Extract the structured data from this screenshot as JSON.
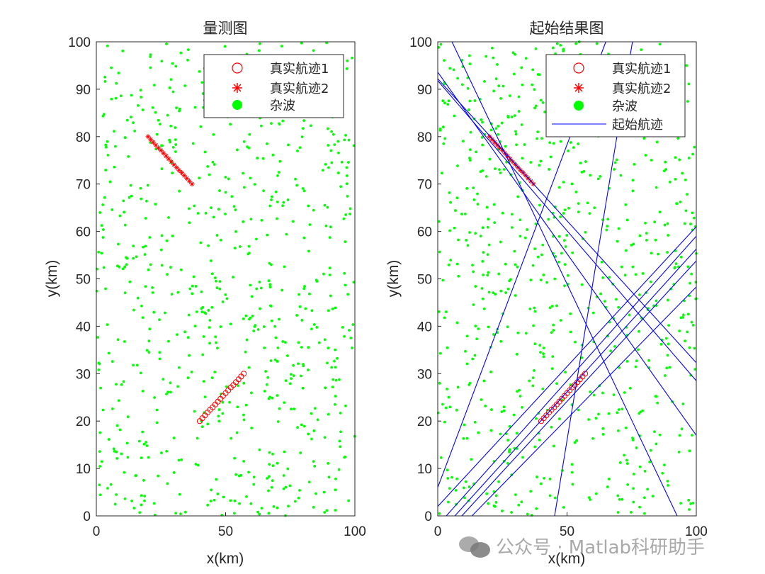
{
  "chart_data": [
    {
      "type": "scatter",
      "title": "量测图",
      "xlabel": "x(km)",
      "ylabel": "y(km)",
      "xlim": [
        0,
        100
      ],
      "ylim": [
        0,
        100
      ],
      "xticks": [
        0,
        50,
        100
      ],
      "yticks": [
        0,
        10,
        20,
        30,
        40,
        50,
        60,
        70,
        80,
        90,
        100
      ],
      "grid": false,
      "legend_position": "northeast",
      "legend": [
        "真实航迹1",
        "真实航迹2",
        "杂波"
      ],
      "series": [
        {
          "name": "真实航迹1",
          "marker": "circle",
          "color": "#ff0000",
          "x": [
            40,
            41,
            42,
            43,
            44,
            45,
            46,
            47,
            48,
            49,
            50,
            51,
            52,
            53,
            54,
            55,
            56,
            57
          ],
          "y": [
            20,
            20.6,
            21.2,
            21.8,
            22.4,
            22.9,
            23.5,
            24.1,
            24.7,
            25.3,
            25.9,
            26.5,
            27.1,
            27.6,
            28.2,
            28.8,
            29.4,
            30
          ]
        },
        {
          "name": "真实航迹2",
          "marker": "asterisk",
          "color": "#ff0000",
          "x": [
            20,
            21,
            22,
            23,
            24,
            25,
            26,
            27,
            28,
            29,
            30,
            31,
            32,
            33,
            34,
            35,
            36,
            37
          ],
          "y": [
            80,
            79.4,
            78.8,
            78.2,
            77.6,
            77.1,
            76.5,
            75.9,
            75.3,
            74.7,
            74.1,
            73.5,
            72.9,
            72.4,
            71.8,
            71.2,
            70.6,
            70
          ]
        },
        {
          "name": "杂波",
          "marker": "dot",
          "color": "#00ff00",
          "count_approx": 700,
          "distribution": "uniform over [0,100]x[0,100]"
        }
      ]
    },
    {
      "type": "scatter",
      "title": "起始结果图",
      "xlabel": "x(km)",
      "ylabel": "y(km)",
      "xlim": [
        0,
        100
      ],
      "ylim": [
        0,
        100
      ],
      "xticks": [
        0,
        50,
        100
      ],
      "yticks": [
        0,
        10,
        20,
        30,
        40,
        50,
        60,
        70,
        80,
        90,
        100
      ],
      "grid": false,
      "legend_position": "northeast",
      "legend": [
        "真实航迹1",
        "真实航迹2",
        "杂波",
        "起始航迹"
      ],
      "series": [
        {
          "name": "真实航迹1",
          "marker": "circle",
          "color": "#ff0000",
          "same_as": "panel1"
        },
        {
          "name": "真实航迹2",
          "marker": "asterisk",
          "color": "#ff0000",
          "same_as": "panel1"
        },
        {
          "name": "杂波",
          "marker": "dot",
          "color": "#00ff00",
          "count_approx": 700
        },
        {
          "name": "起始航迹",
          "type": "line",
          "color": "#0000ff",
          "lines": [
            [
              [
                5.5,
                100
              ],
              [
                92.6,
                0
              ]
            ],
            [
              [
                0,
                93.6
              ],
              [
                100,
                17
              ]
            ],
            [
              [
                0,
                92.2
              ],
              [
                100,
                32.3
              ]
            ],
            [
              [
                0,
                91.8
              ],
              [
                100,
                28.5
              ]
            ],
            [
              [
                0,
                6
              ],
              [
                65,
                100
              ]
            ],
            [
              [
                45.2,
                0
              ],
              [
                75.3,
                100
              ]
            ],
            [
              [
                0,
                2
              ],
              [
                100,
                61
              ]
            ],
            [
              [
                3.3,
                0
              ],
              [
                100,
                59
              ]
            ],
            [
              [
                6.6,
                0
              ],
              [
                100,
                56.3
              ]
            ],
            [
              [
                9.3,
                0
              ],
              [
                100,
                53.8
              ]
            ],
            [
              [
                13.2,
                0
              ],
              [
                100,
                48.3
              ]
            ]
          ]
        }
      ]
    }
  ],
  "panels": [
    {
      "title": "量测图",
      "xlabel": "x(km)",
      "ylabel": "y(km)",
      "legend": [
        {
          "label": "真实航迹1"
        },
        {
          "label": "真实航迹2"
        },
        {
          "label": "杂波"
        }
      ]
    },
    {
      "title": "起始结果图",
      "xlabel": "x(km)",
      "ylabel": "y(km)",
      "legend": [
        {
          "label": "真实航迹1"
        },
        {
          "label": "真实航迹2"
        },
        {
          "label": "杂波"
        },
        {
          "label": "起始航迹"
        }
      ]
    }
  ],
  "ticks": {
    "x": [
      "0",
      "50",
      "100"
    ],
    "y": [
      "0",
      "10",
      "20",
      "30",
      "40",
      "50",
      "60",
      "70",
      "80",
      "90",
      "100"
    ]
  },
  "colors": {
    "track": "#ff0000",
    "clutter": "#00ff00",
    "start_track": "#0000ff",
    "axis": "#262626"
  },
  "watermark": {
    "text": "公众号 · Matlab科研助手"
  }
}
